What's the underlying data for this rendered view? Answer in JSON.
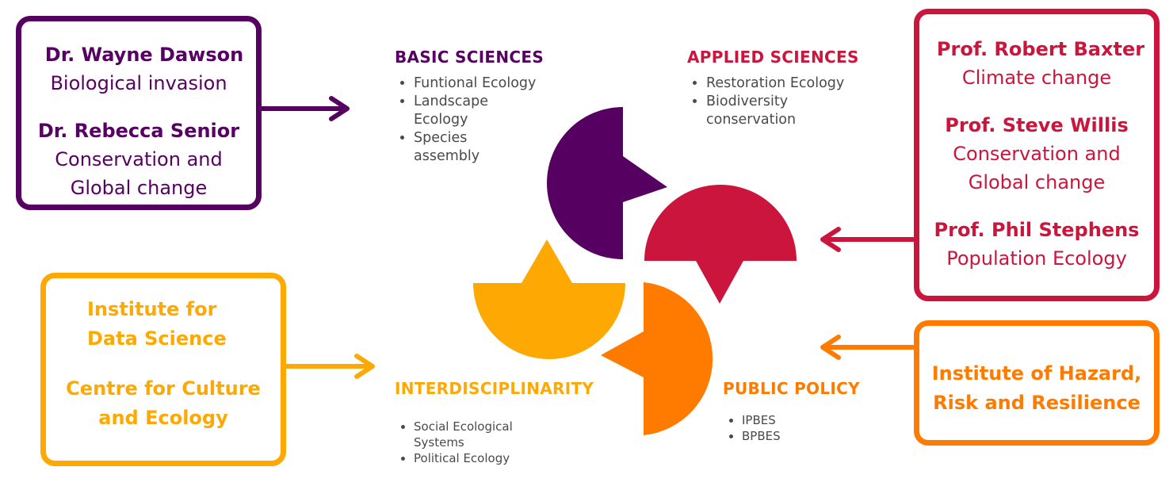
{
  "colors": {
    "purple": "#560062",
    "red": "#cc153c",
    "orange": "#ff7b00",
    "yellow": "#fea903",
    "text_gray": "#4a4a4a"
  },
  "boxes": {
    "top_left": {
      "people": [
        {
          "name": "Dr. Wayne Dawson",
          "role": "Biological invasion"
        },
        {
          "name": "Dr. Rebecca Senior",
          "role_line1": "Conservation and",
          "role_line2": "Global change"
        }
      ]
    },
    "top_right": {
      "people": [
        {
          "name": "Prof. Robert Baxter",
          "role": "Climate change"
        },
        {
          "name": "Prof. Steve Willis",
          "role_line1": "Conservation and",
          "role_line2": "Global change"
        },
        {
          "name": "Prof. Phil Stephens",
          "role": "Population Ecology"
        }
      ]
    },
    "bottom_left": {
      "org1_line1": "Institute  for",
      "org1_line2": "Data  Science",
      "org2_line1": "Centre for Culture",
      "org2_line2": "and Ecology"
    },
    "bottom_right": {
      "org_line1": "Institute of Hazard,",
      "org_line2": "Risk and Resilience"
    }
  },
  "sections": {
    "basic": {
      "title": "BASIC SCIENCES",
      "items": [
        "Funtional Ecology",
        "Landscape Ecology",
        "Species assembly"
      ]
    },
    "applied": {
      "title": "APPLIED SCIENCES",
      "items": [
        "Restoration Ecology",
        "Biodiversity conservation"
      ]
    },
    "inter": {
      "title": "INTERDISCIPLINARITY",
      "items": [
        "Social Ecological Systems",
        "Political Ecology"
      ]
    },
    "policy": {
      "title": "PUBLIC POLICY",
      "items": [
        "IPBES",
        "BPBES"
      ]
    }
  }
}
